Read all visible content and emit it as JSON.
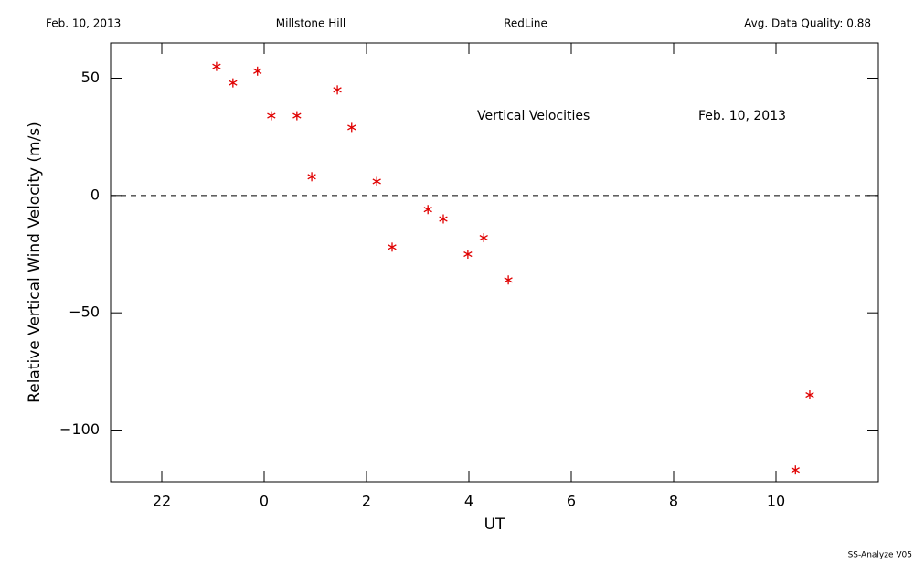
{
  "header": {
    "date": "Feb. 10, 2013",
    "site": "Millstone Hill",
    "line": "RedLine",
    "quality": "Avg. Data Quality: 0.88"
  },
  "footer": "SS-Analyze V05",
  "chart_data": {
    "type": "scatter",
    "annotations": [
      "Vertical Velocities",
      "Feb. 10, 2013"
    ],
    "x_label": "UT",
    "y_label": "Relative Vertical Wind Velocity (m/s)",
    "color": "#e00000",
    "reference_line": 0,
    "x": [
      -0.93,
      -0.61,
      -0.13,
      0.14,
      0.64,
      0.93,
      1.43,
      1.71,
      2.2,
      2.5,
      3.2,
      3.5,
      3.98,
      4.29,
      4.77,
      10.38,
      10.66
    ],
    "values": [
      55,
      48,
      53,
      34,
      34,
      8,
      45,
      29,
      6,
      -22,
      -6,
      -10,
      -25,
      -18,
      -36,
      -117,
      -85
    ],
    "xlim": [
      -3,
      12
    ],
    "xticks": [
      {
        "value": -2,
        "label": "22"
      },
      0,
      2,
      4,
      6,
      8,
      10
    ],
    "ylim": [
      -122,
      65
    ],
    "yticks": [
      {
        "value": -100,
        "label": "−100"
      },
      {
        "value": -50,
        "label": "−50"
      },
      0,
      50
    ]
  }
}
